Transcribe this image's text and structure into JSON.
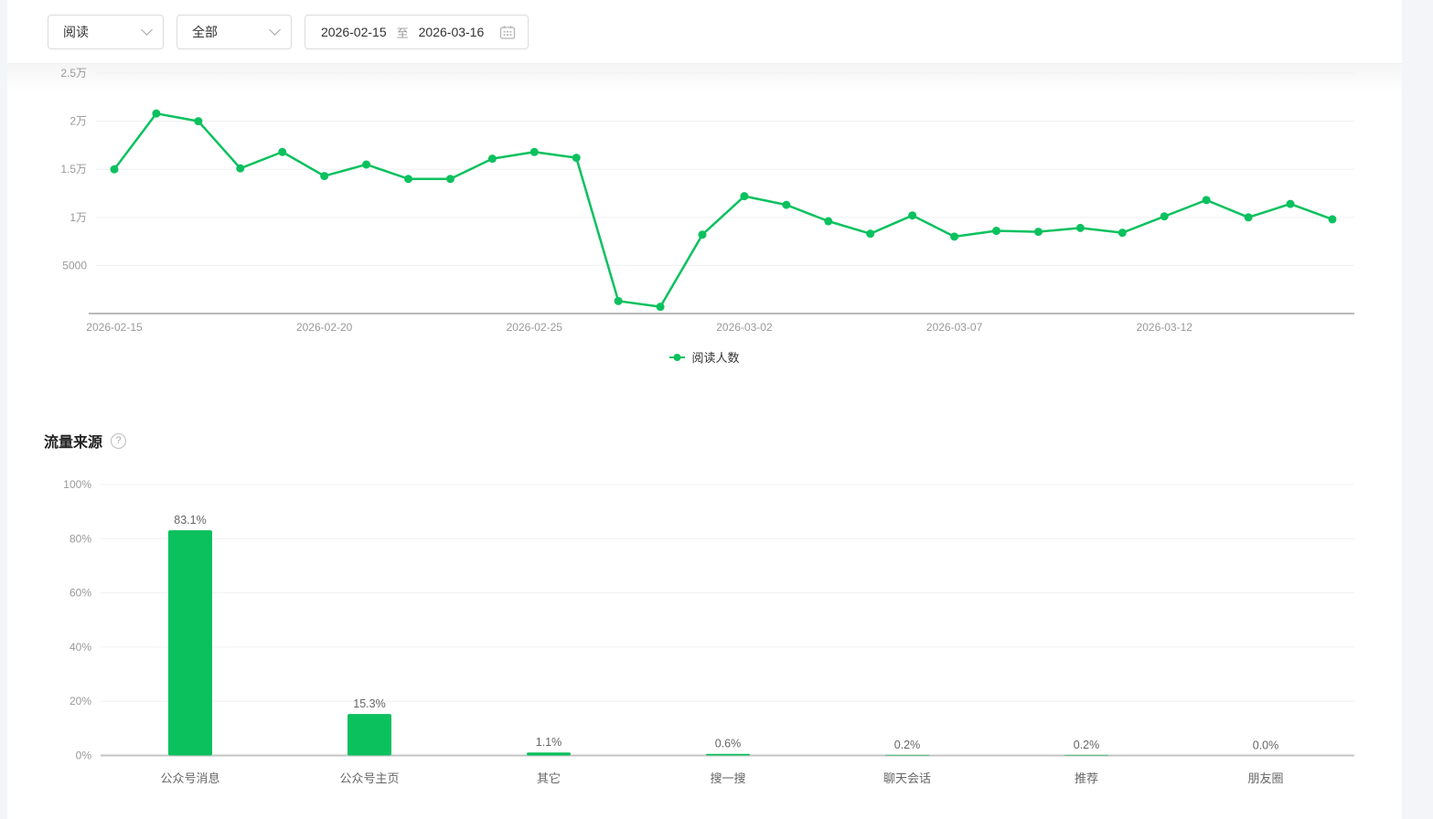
{
  "toolbar": {
    "metric_select": {
      "value": "阅读"
    },
    "scope_select": {
      "value": "全部"
    },
    "date_range": {
      "start": "2026-02-15",
      "separator": "至",
      "end": "2026-03-16"
    }
  },
  "traffic_section": {
    "title": "流量来源",
    "help_glyph": "?"
  },
  "colors": {
    "accent_green": "#0ac15e",
    "axis_line": "#b9b9b9",
    "grid_line": "#f0f0f0",
    "tick_text": "#999999",
    "label_text": "#666666"
  },
  "chart_data": [
    {
      "type": "line",
      "series_name": "阅读人数",
      "x": [
        "2026-02-15",
        "2026-02-16",
        "2026-02-17",
        "2026-02-18",
        "2026-02-19",
        "2026-02-20",
        "2026-02-21",
        "2026-02-22",
        "2026-02-23",
        "2026-02-24",
        "2026-02-25",
        "2026-02-26",
        "2026-02-27",
        "2026-02-28",
        "2026-03-01",
        "2026-03-02",
        "2026-03-03",
        "2026-03-04",
        "2026-03-05",
        "2026-03-06",
        "2026-03-07",
        "2026-03-08",
        "2026-03-09",
        "2026-03-10",
        "2026-03-11",
        "2026-03-12",
        "2026-03-13",
        "2026-03-14",
        "2026-03-15",
        "2026-03-16"
      ],
      "values": [
        15000,
        20800,
        20000,
        15100,
        16800,
        14300,
        15500,
        14000,
        14000,
        16100,
        16800,
        16200,
        1300,
        700,
        8200,
        12200,
        11300,
        9600,
        8300,
        10200,
        8000,
        8600,
        8500,
        8900,
        8400,
        10100,
        11800,
        10000,
        11400,
        9800
      ],
      "x_tick_labels": [
        "2026-02-15",
        "2026-02-20",
        "2026-02-25",
        "2026-03-02",
        "2026-03-07",
        "2026-03-12"
      ],
      "y_ticks": [
        {
          "value": 25000,
          "label": "2.5万"
        },
        {
          "value": 20000,
          "label": "2万"
        },
        {
          "value": 15000,
          "label": "1.5万"
        },
        {
          "value": 10000,
          "label": "1万"
        },
        {
          "value": 5000,
          "label": "5000"
        }
      ],
      "ylim": [
        0,
        25000
      ],
      "grid": true,
      "legend_position": "bottom"
    },
    {
      "type": "bar",
      "title": "流量来源",
      "categories": [
        "公众号消息",
        "公众号主页",
        "其它",
        "搜一搜",
        "聊天会话",
        "推荐",
        "朋友圈"
      ],
      "values": [
        83.1,
        15.3,
        1.1,
        0.6,
        0.2,
        0.2,
        0.0
      ],
      "value_labels": [
        "83.1%",
        "15.3%",
        "1.1%",
        "0.6%",
        "0.2%",
        "0.2%",
        "0.0%"
      ],
      "y_ticks": [
        "0%",
        "20%",
        "40%",
        "60%",
        "80%",
        "100%"
      ],
      "ylim": [
        0,
        100
      ],
      "grid": true
    }
  ]
}
